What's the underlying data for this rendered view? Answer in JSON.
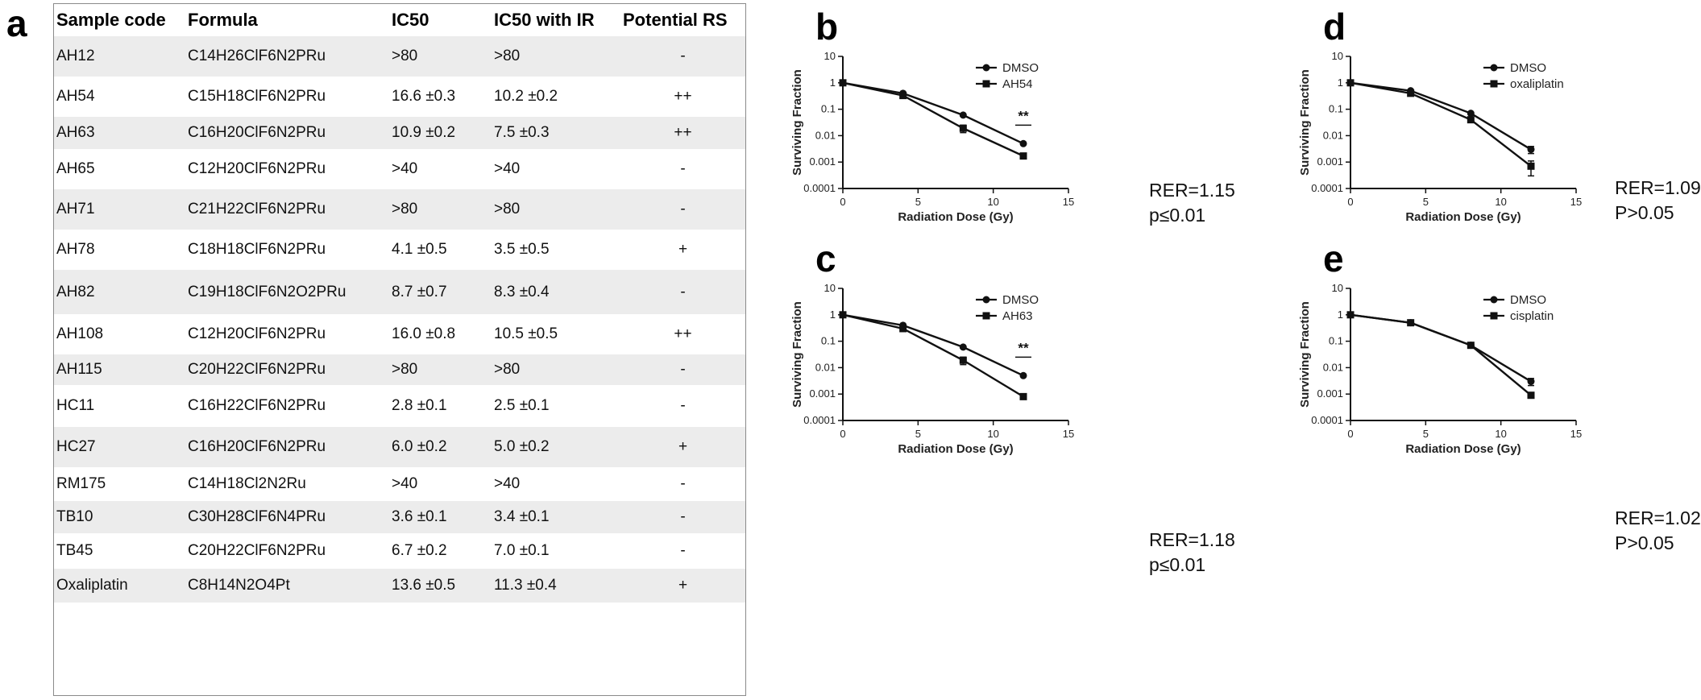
{
  "panels": {
    "a": "a",
    "b": "b",
    "c": "c",
    "d": "d",
    "e": "e"
  },
  "table": {
    "headers": [
      "Sample code",
      "Formula",
      "IC50",
      "IC50 with IR",
      "Potential RS"
    ],
    "rows": [
      {
        "code": "AH12",
        "formula": "C14H26ClF6N2PRu",
        "ic50": ">80",
        "ic50_ir": ">80",
        "rs": "-"
      },
      {
        "code": "AH54",
        "formula": "C15H18ClF6N2PRu",
        "ic50": "16.6 ±0.3",
        "ic50_ir": "10.2 ±0.2",
        "rs": "++"
      },
      {
        "code": "AH63",
        "formula": "C16H20ClF6N2PRu",
        "ic50": "10.9 ±0.2",
        "ic50_ir": "7.5 ±0.3",
        "rs": "++"
      },
      {
        "code": "AH65",
        "formula": "C12H20ClF6N2PRu",
        "ic50": ">40",
        "ic50_ir": ">40",
        "rs": "-"
      },
      {
        "code": "AH71",
        "formula": "C21H22ClF6N2PRu",
        "ic50": ">80",
        "ic50_ir": ">80",
        "rs": "-"
      },
      {
        "code": "AH78",
        "formula": "C18H18ClF6N2PRu",
        "ic50": "4.1 ±0.5",
        "ic50_ir": "3.5 ±0.5",
        "rs": "+"
      },
      {
        "code": "AH82",
        "formula": "C19H18ClF6N2O2PRu",
        "ic50": "8.7 ±0.7",
        "ic50_ir": "8.3 ±0.4",
        "rs": "-"
      },
      {
        "code": "AH108",
        "formula": "C12H20ClF6N2PRu",
        "ic50": "16.0 ±0.8",
        "ic50_ir": "10.5 ±0.5",
        "rs": "++"
      },
      {
        "code": "AH115",
        "formula": "C20H22ClF6N2PRu",
        "ic50": ">80",
        "ic50_ir": ">80",
        "rs": "-"
      },
      {
        "code": "HC11",
        "formula": "C16H22ClF6N2PRu",
        "ic50": "2.8 ±0.1",
        "ic50_ir": "2.5 ±0.1",
        "rs": "-"
      },
      {
        "code": "HC27",
        "formula": "C16H20ClF6N2PRu",
        "ic50": "6.0 ±0.2",
        "ic50_ir": "5.0 ±0.2",
        "rs": "+"
      },
      {
        "code": "RM175",
        "formula": "C14H18Cl2N2Ru",
        "ic50": ">40",
        "ic50_ir": ">40",
        "rs": "-"
      },
      {
        "code": "TB10",
        "formula": "C30H28ClF6N4PRu",
        "ic50": "3.6 ±0.1",
        "ic50_ir": "3.4 ±0.1",
        "rs": "-"
      },
      {
        "code": "TB45",
        "formula": "C20H22ClF6N2PRu",
        "ic50": "6.7 ±0.2",
        "ic50_ir": "7.0 ±0.1",
        "rs": "-"
      },
      {
        "code": "Oxaliplatin",
        "formula": "C8H14N2O4Pt",
        "ic50": "13.6 ±0.5",
        "ic50_ir": "11.3 ±0.4",
        "rs": "+"
      }
    ]
  },
  "chart_data": [
    {
      "id": "b",
      "type": "line",
      "title": "",
      "xlabel": "Radiation Dose (Gy)",
      "ylabel": "Surviving Fraction",
      "xlim": [
        0,
        15
      ],
      "ylim": [
        0.0001,
        10
      ],
      "yscale": "log",
      "xticks": [
        "0",
        "5",
        "10",
        "15"
      ],
      "yticks": [
        "10",
        "1",
        "0.1",
        "0.01",
        "0.001",
        "0.0001"
      ],
      "series": [
        {
          "name": "DMSO",
          "marker": "circle",
          "x": [
            0,
            4,
            8,
            12
          ],
          "y": [
            1,
            0.4,
            0.06,
            0.005
          ],
          "err": [
            0.1,
            0.04,
            0.005,
            0.0004
          ]
        },
        {
          "name": "AH54",
          "marker": "square",
          "x": [
            0,
            4,
            8,
            12
          ],
          "y": [
            1,
            0.33,
            0.019,
            0.0017
          ],
          "err": [
            0.1,
            0.03,
            0.006,
            0.0002
          ]
        }
      ],
      "annotation": "**",
      "annotation_x": 12,
      "stats": [
        "RER=1.15",
        "p≤0.01"
      ]
    },
    {
      "id": "c",
      "type": "line",
      "title": "",
      "xlabel": "Radiation Dose (Gy)",
      "ylabel": "Surviving Fraction",
      "xlim": [
        0,
        15
      ],
      "ylim": [
        0.0001,
        10
      ],
      "yscale": "log",
      "xticks": [
        "0",
        "5",
        "10",
        "15"
      ],
      "yticks": [
        "10",
        "1",
        "0.1",
        "0.01",
        "0.001",
        "0.0001"
      ],
      "series": [
        {
          "name": "DMSO",
          "marker": "circle",
          "x": [
            0,
            4,
            8,
            12
          ],
          "y": [
            1,
            0.4,
            0.06,
            0.005
          ],
          "err": [
            0.1,
            0.04,
            0.005,
            0.0004
          ]
        },
        {
          "name": "AH63",
          "marker": "square",
          "x": [
            0,
            4,
            8,
            12
          ],
          "y": [
            1,
            0.3,
            0.019,
            0.0008
          ],
          "err": [
            0.1,
            0.03,
            0.006,
            0.0001
          ]
        }
      ],
      "annotation": "**",
      "annotation_x": 12,
      "stats": [
        "RER=1.18",
        "p≤0.01"
      ]
    },
    {
      "id": "d",
      "type": "line",
      "title": "",
      "xlabel": "Radiation Dose (Gy)",
      "ylabel": "Surviving Fraction",
      "xlim": [
        0,
        15
      ],
      "ylim": [
        0.0001,
        10
      ],
      "yscale": "log",
      "xticks": [
        "0",
        "5",
        "10",
        "15"
      ],
      "yticks": [
        "10",
        "1",
        "0.1",
        "0.01",
        "0.001",
        "0.0001"
      ],
      "series": [
        {
          "name": "DMSO",
          "marker": "circle",
          "x": [
            0,
            4,
            8,
            12
          ],
          "y": [
            1,
            0.5,
            0.07,
            0.003
          ],
          "err": [
            0.1,
            0.05,
            0.006,
            0.0009
          ]
        },
        {
          "name": "oxaliplatin",
          "marker": "square",
          "x": [
            0,
            4,
            8,
            12
          ],
          "y": [
            1,
            0.4,
            0.04,
            0.0007
          ],
          "err": [
            0.1,
            0.04,
            0.005,
            0.0004
          ]
        }
      ],
      "stats": [
        "RER=1.09",
        "P>0.05"
      ]
    },
    {
      "id": "e",
      "type": "line",
      "title": "",
      "xlabel": "Radiation Dose (Gy)",
      "ylabel": "Surviving Fraction",
      "xlim": [
        0,
        15
      ],
      "ylim": [
        0.0001,
        10
      ],
      "yscale": "log",
      "xticks": [
        "0",
        "5",
        "10",
        "15"
      ],
      "yticks": [
        "10",
        "1",
        "0.1",
        "0.01",
        "0.001",
        "0.0001"
      ],
      "series": [
        {
          "name": "DMSO",
          "marker": "circle",
          "x": [
            0,
            4,
            8,
            12
          ],
          "y": [
            1,
            0.5,
            0.07,
            0.003
          ],
          "err": [
            0.1,
            0.04,
            0.006,
            0.0009
          ]
        },
        {
          "name": "cisplatin",
          "marker": "square",
          "x": [
            0,
            4,
            8,
            12
          ],
          "y": [
            1,
            0.5,
            0.07,
            0.0009
          ],
          "err": [
            0.1,
            0.04,
            0.006,
            0.0002
          ]
        }
      ],
      "stats": [
        "RER=1.02",
        "P>0.05"
      ]
    }
  ]
}
